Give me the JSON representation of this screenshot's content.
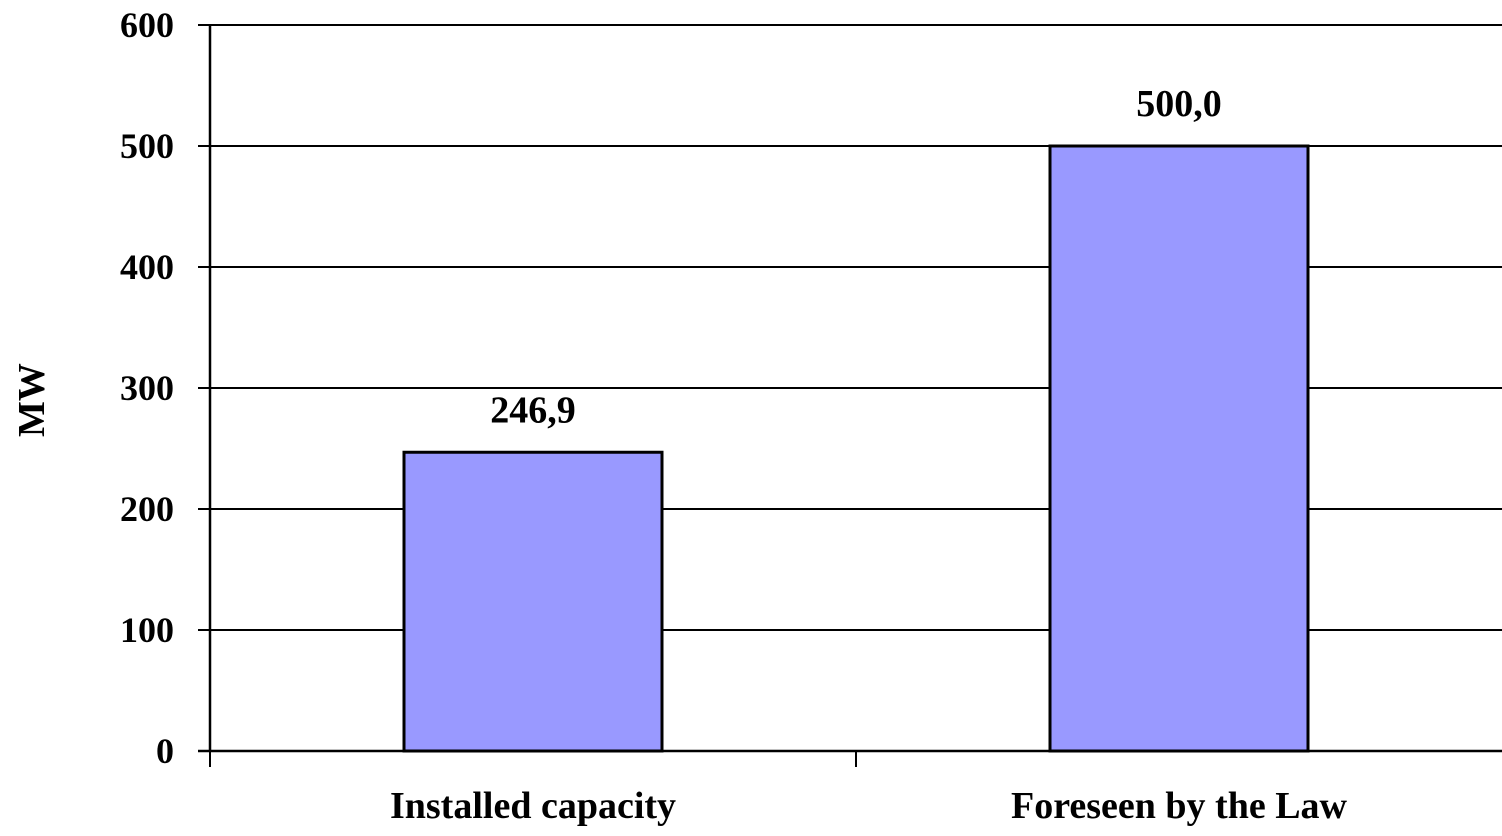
{
  "chart_data": {
    "type": "bar",
    "categories": [
      "Installed capacity",
      "Foreseen by the Law"
    ],
    "values": [
      246.9,
      500.0
    ],
    "data_labels": [
      "246,9",
      "500,0"
    ],
    "title": "",
    "xlabel": "",
    "ylabel": "MW",
    "ylim": [
      0,
      600
    ],
    "yticks": [
      0,
      100,
      200,
      300,
      400,
      500,
      600
    ],
    "ytick_labels": [
      "0",
      "100",
      "200",
      "300",
      "400",
      "500",
      "600"
    ],
    "grid": true,
    "legend": "none"
  },
  "colors": {
    "bar_fill": "#9999FF",
    "bar_stroke": "#000000",
    "grid": "#000000",
    "text": "#000000"
  }
}
